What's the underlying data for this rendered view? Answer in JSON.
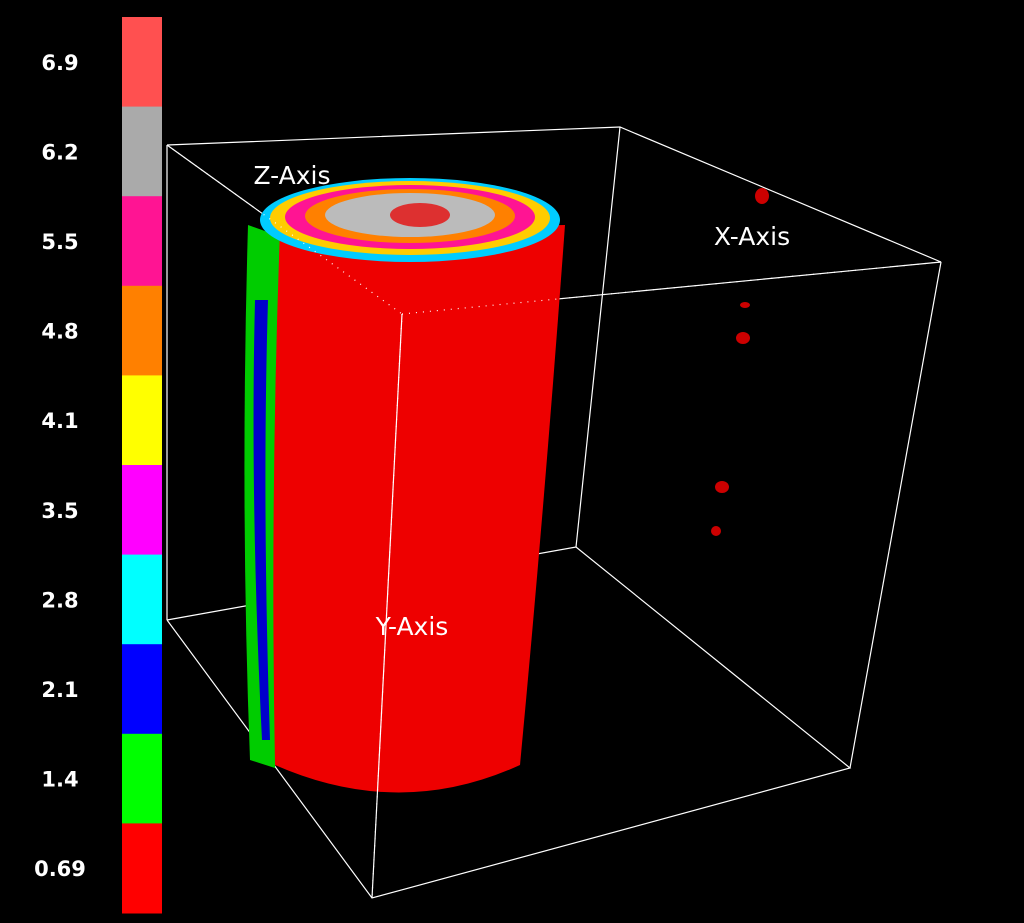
{
  "colorbar": {
    "levels": [
      {
        "value": 6.9,
        "color": "#ff5050"
      },
      {
        "value": 6.2,
        "color": "#aaaaaa"
      },
      {
        "value": 5.5,
        "color": "#ff1493"
      },
      {
        "value": 4.8,
        "color": "#ff8000"
      },
      {
        "value": 4.1,
        "color": "#ffff00"
      },
      {
        "value": 3.5,
        "color": "#ff00ff"
      },
      {
        "value": 2.8,
        "color": "#00ffff"
      },
      {
        "value": 2.1,
        "color": "#0000ff"
      },
      {
        "value": 1.4,
        "color": "#00ff00"
      },
      {
        "value": 0.69,
        "color": "#ff0000"
      }
    ]
  },
  "axes": {
    "x": "X-Axis",
    "y": "Y-Axis",
    "z": "Z-Axis"
  }
}
